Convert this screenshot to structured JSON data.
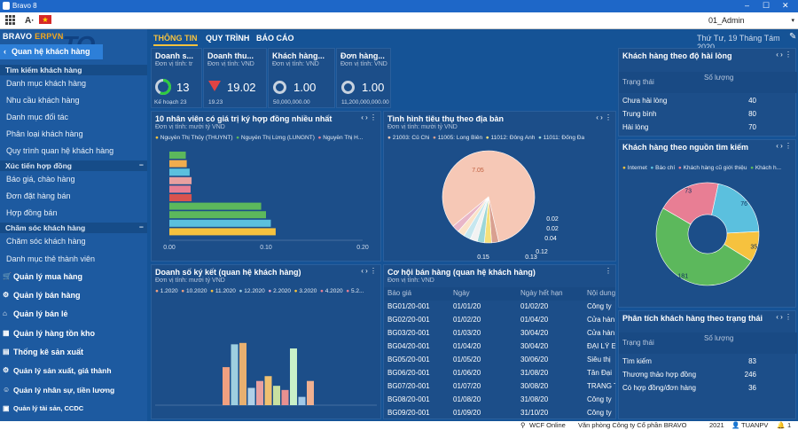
{
  "window": {
    "title": "Bravo 8",
    "minimize": "–",
    "maximize": "☐",
    "close": "✕"
  },
  "toolbar": {
    "grid_icon": "grid-icon",
    "font_label": "A·",
    "flag_icon": "flag-icon",
    "user": "01_Admin",
    "user_arrow": "▾"
  },
  "sidebar": {
    "brand_bravo": "BRAVO",
    "brand_erp": "ERPVN",
    "watermark": "TO",
    "active_module": "Quan hệ khách hàng",
    "back_icon": "‹",
    "groups": [
      {
        "title": "Tìm kiếm khách hàng",
        "items": [
          "Danh mục khách hàng",
          "Nhu cầu khách hàng",
          "Danh mục đối tác",
          "Phân loại khách hàng",
          "Quy trình quan hệ khách hàng"
        ]
      },
      {
        "title": "Xúc tiến hợp đồng",
        "items": [
          "Báo giá, chào hàng",
          "Đơn đặt hàng bán",
          "Hợp đồng bán"
        ]
      },
      {
        "title": "Chăm sóc khách hàng",
        "items": [
          "Chăm sóc khách hàng",
          "Danh mục thẻ thành viên"
        ]
      }
    ],
    "collapse_icon": "−",
    "modules": [
      "Quản lý mua hàng",
      "Quản lý bán hàng",
      "Quản lý bán lẻ",
      "Quản lý hàng tồn kho",
      "Thống kê sản xuất",
      "Quản lý sản xuất, giá thành",
      "Quản lý nhân sự, tiền lương",
      "Quản lý tài sản, CCDC"
    ]
  },
  "tabs": [
    "THÔNG TIN",
    "QUY TRÌNH",
    "BÁO CÁO"
  ],
  "date": "Thứ Tư, 19 Tháng Tám 2020",
  "nav_arrows": "‹ ›",
  "menu_dots": "⋮",
  "kpis": [
    {
      "title": "Doanh s...",
      "unit": "Đơn vị tính: tr",
      "value": "13",
      "sub": "Kế hoạch 23",
      "ring_fill": 0.57,
      "indicator": "ring-green"
    },
    {
      "title": "Doanh thu...",
      "unit": "Đơn vị tính: VND",
      "value": "19.02",
      "sub": "19.23",
      "indicator": "down-triangle"
    },
    {
      "title": "Khách hàng...",
      "unit": "Đơn vị tính: VND",
      "value": "1.00",
      "sub": "50,000,000.00",
      "indicator": "ring"
    },
    {
      "title": "Đơn hàng...",
      "unit": "Đơn vị tính: VND",
      "value": "1.00",
      "sub": "11,200,000,000.00",
      "indicator": "ring"
    }
  ],
  "panel_bar": {
    "title": "10 nhân viên có giá trị ký hợp đồng nhiều nhất",
    "unit": "Đơn vị tính: mười tỷ VND",
    "legend": [
      "Nguyễn Thị Thủy (THUYNT)",
      "Nguyễn Thị Lừng (LUNGNT)",
      "Nguyễn Thị H..."
    ],
    "legend_colors": [
      "#f6c23e",
      "#5cb85c",
      "#e87e94"
    ]
  },
  "panel_pie": {
    "title": "Tình hình tiêu thụ theo địa bàn",
    "unit": "Đơn vị tính: mười tỷ VND",
    "legend": [
      "21003: Củ Chi",
      "11005: Long Biên",
      "11012: Đông Anh",
      "11011: Đống Đa"
    ]
  },
  "panel_col": {
    "title": "Doanh số ký kết (quan hệ khách hàng)",
    "unit": "Đơn vị tính: mười tỷ VND",
    "legend": [
      "1.2020",
      "10.2020",
      "11.2020",
      "12.2020",
      "2.2020",
      "3.2020",
      "4.2020",
      "5.2..."
    ]
  },
  "panel_table": {
    "title": "Cơ hội bán hàng (quan hệ khách hàng)",
    "unit": "Đơn vị tính: VND",
    "headers": [
      "Báo giá",
      "Ngày",
      "Ngày hết hạn",
      "Nội dung"
    ],
    "rows": [
      [
        "BG01/20-001",
        "01/01/20",
        "01/02/20",
        "Công ty"
      ],
      [
        "BG02/20-001",
        "01/02/20",
        "01/04/20",
        "Cửa hàn"
      ],
      [
        "BG03/20-001",
        "01/03/20",
        "30/04/20",
        "Cửa hàn"
      ],
      [
        "BG04/20-001",
        "01/04/20",
        "30/04/20",
        "ĐẠI LÝ E"
      ],
      [
        "BG05/20-001",
        "01/05/20",
        "30/06/20",
        "Siêu thị"
      ],
      [
        "BG06/20-001",
        "01/06/20",
        "31/08/20",
        "Tân Đại"
      ],
      [
        "BG07/20-001",
        "01/07/20",
        "30/08/20",
        "TRANG T"
      ],
      [
        "BG08/20-001",
        "01/08/20",
        "31/08/20",
        "Công ty"
      ],
      [
        "BG09/20-001",
        "01/09/20",
        "31/10/20",
        "Công ty"
      ]
    ]
  },
  "panel_satisfaction": {
    "title": "Khách hàng theo độ hài lòng",
    "headers": [
      "Trạng thái",
      "Số lượng"
    ],
    "rows": [
      [
        "Chưa hài lòng",
        "40"
      ],
      [
        "Trung bình",
        "80"
      ],
      [
        "Hài lòng",
        "70"
      ]
    ]
  },
  "panel_source": {
    "title": "Khách hàng theo nguồn tìm kiếm",
    "legend": [
      "Internet",
      "Báo chí",
      "Khách hàng cũ giới thiệu",
      "Khách h..."
    ],
    "legend_colors": [
      "#f6c23e",
      "#5bc0de",
      "#e87e94",
      "#5cb85c"
    ]
  },
  "panel_status": {
    "title": "Phân tích khách hàng theo trạng thái",
    "headers": [
      "Trạng thái",
      "Số lượng"
    ],
    "rows": [
      [
        "Tìm kiếm",
        "83"
      ],
      [
        "Thương thảo hợp đồng",
        "246"
      ],
      [
        "Có hợp đồng/đơn hàng",
        "36"
      ]
    ]
  },
  "status": {
    "online": "WCF Online",
    "company": "Văn phòng Công ty Cổ phần BRAVO",
    "year": "2021",
    "user": "TUANPV",
    "count": "1"
  },
  "chart_data": [
    {
      "type": "bar",
      "orientation": "horizontal",
      "title": "10 nhân viên có giá trị ký hợp đồng nhiều nhất",
      "xlim": [
        0,
        0.2
      ],
      "x_ticks": [
        "0.00",
        "0.10",
        "0.20"
      ],
      "colors": [
        "#f6c23e",
        "#5bc0de",
        "#5cb85c",
        "#5cb85c",
        "#d9534f",
        "#e87e94",
        "#e8a0a0",
        "#5bc0de",
        "#f0ad4e",
        "#5cb85c"
      ],
      "values": [
        0.11,
        0.105,
        0.1,
        0.095,
        0.023,
        0.022,
        0.023,
        0.021,
        0.018,
        0.017
      ]
    },
    {
      "type": "pie",
      "title": "Tình hình tiêu thụ theo địa bàn",
      "values": [
        7.05,
        0.15,
        0.13,
        0.13,
        0.12,
        0.04,
        0.02,
        0.02
      ],
      "labels": [
        "7.05",
        "0.15",
        "0.13",
        "0.13",
        "0.12",
        "0.04",
        "0.02",
        "0.02"
      ],
      "colors": [
        "#f6c8b6",
        "#d9a090",
        "#f6e07a",
        "#9cd7d9",
        "#f2f2f2",
        "#c6e7ef",
        "#fbe3c8",
        "#e8b6c8"
      ]
    },
    {
      "type": "bar",
      "title": "Doanh số ký kết (quan hệ khách hàng)",
      "values": [
        0.55,
        0.88,
        0.9,
        0.25,
        0.35,
        0.42,
        0.28,
        0.22,
        0.82,
        0.12,
        0.35
      ],
      "colors": [
        "#f0a080",
        "#9ecfe0",
        "#e8b070",
        "#b0d0e8",
        "#e8a0a0",
        "#f0c070",
        "#c8e0a0",
        "#e89090",
        "#c8f0c8",
        "#a0c8e8",
        "#f0b090"
      ]
    },
    {
      "type": "pie",
      "donut": true,
      "title": "Khách hàng theo nguồn tìm kiếm",
      "values": [
        35,
        76,
        73,
        181
      ],
      "labels": [
        "35",
        "76",
        "73",
        "181"
      ],
      "colors": [
        "#f6c23e",
        "#5bc0de",
        "#e87e94",
        "#5cb85c"
      ]
    }
  ]
}
